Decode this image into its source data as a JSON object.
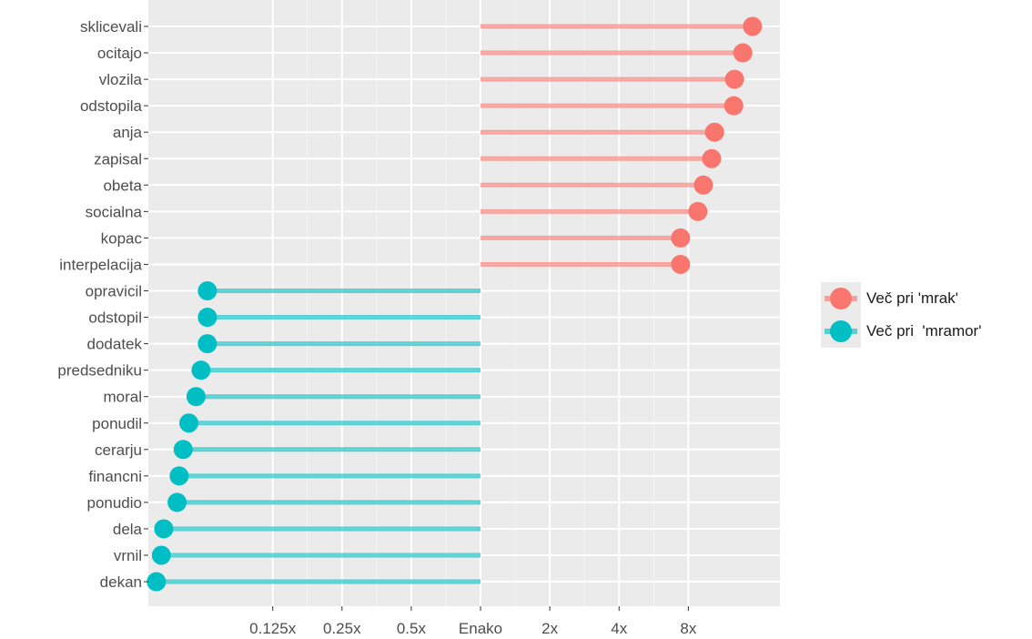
{
  "chart_data": {
    "type": "lollipop",
    "scale": "log2",
    "baseline": 1,
    "xlim": [
      0.036,
      20
    ],
    "x_ticks": [
      {
        "value": 0.125,
        "label": "0.125x"
      },
      {
        "value": 0.25,
        "label": "0.25x"
      },
      {
        "value": 0.5,
        "label": "0.5x"
      },
      {
        "value": 1,
        "label": "Enako"
      },
      {
        "value": 2,
        "label": "2x"
      },
      {
        "value": 4,
        "label": "4x"
      },
      {
        "value": 8,
        "label": "8x"
      }
    ],
    "categories": [
      "sklicevali",
      "ocitajo",
      "vlozila",
      "odstopila",
      "anja",
      "zapisal",
      "obeta",
      "socialna",
      "kopac",
      "interpelacija",
      "opravicil",
      "odstopil",
      "dodatek",
      "predsedniku",
      "moral",
      "ponudil",
      "cerarju",
      "financni",
      "ponudio",
      "dela",
      "vrnil",
      "dekan"
    ],
    "values": [
      15.2,
      13.8,
      12.7,
      12.6,
      10.4,
      10.1,
      9.3,
      8.8,
      7.4,
      7.4,
      0.065,
      0.065,
      0.065,
      0.061,
      0.058,
      0.054,
      0.051,
      0.049,
      0.048,
      0.042,
      0.041,
      0.039
    ],
    "groups": [
      0,
      0,
      0,
      0,
      0,
      0,
      0,
      0,
      0,
      0,
      1,
      1,
      1,
      1,
      1,
      1,
      1,
      1,
      1,
      1,
      1,
      1
    ],
    "series": [
      {
        "name": "Več pri 'mrak'",
        "color": "#F8766D"
      },
      {
        "name": "Več pri  'mramor'",
        "color": "#00BFC4"
      }
    ],
    "grid": true,
    "legend_position": "right",
    "panel_background": "#ebebeb"
  }
}
